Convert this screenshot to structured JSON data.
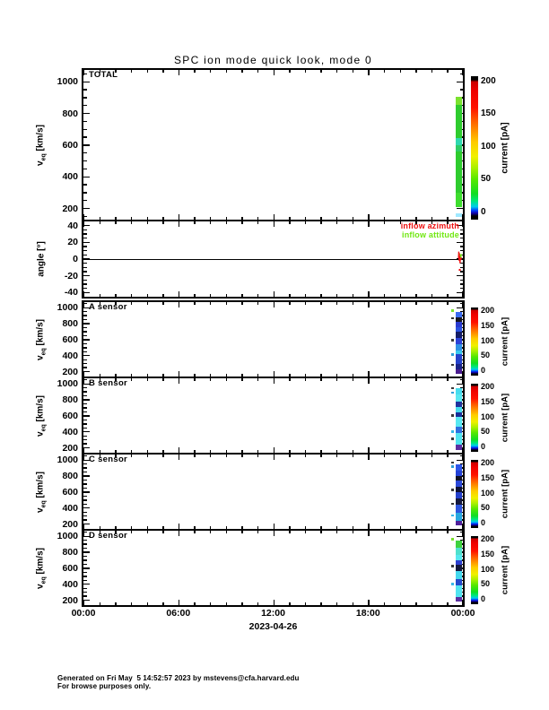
{
  "page": {
    "title": "SPC ion mode quick look, mode 0",
    "footer_line1": "Generated on Fri May  5 14:52:57 2023 by mstevens@cfa.harvard.edu",
    "footer_line2": "For browse purposes only."
  },
  "x_axis": {
    "tick_labels": [
      "00:00",
      "06:00",
      "12:00",
      "18:00",
      "00:00"
    ],
    "date_label": "2023-04-26",
    "major_hours": [
      0,
      6,
      12,
      18,
      24
    ],
    "minor_step_hours": 1,
    "span_hours": 24
  },
  "colorbar": {
    "label": "current [pA]",
    "ticks": [
      0,
      50,
      100,
      150,
      200
    ],
    "gradient_stops": [
      [
        "#000000",
        0
      ],
      [
        "#000000",
        2.5
      ],
      [
        "#1100aa",
        4.5
      ],
      [
        "#0044ff",
        6.5
      ],
      [
        "#00ccee",
        9
      ],
      [
        "#00e87a",
        13
      ],
      [
        "#11dd22",
        18
      ],
      [
        "#55e800",
        28
      ],
      [
        "#a8f000",
        36
      ],
      [
        "#f0f000",
        44
      ],
      [
        "#ffcc00",
        54
      ],
      [
        "#ff9100",
        62
      ],
      [
        "#ff5500",
        70
      ],
      [
        "#ff1100",
        78
      ],
      [
        "#ee0000",
        90
      ],
      [
        "#cc0000",
        96
      ],
      [
        "#000000",
        97.5
      ],
      [
        "#000000",
        100
      ]
    ]
  },
  "colors": {
    "axis": "#000000",
    "background": "#ffffff",
    "inflow_azimuth": "#ee1111",
    "inflow_attitude": "#70e811"
  },
  "chart_data": [
    {
      "key": "total",
      "type": "heatmap",
      "panel_title": "TOTAL",
      "ylabel_main": "v",
      "ylabel_sub": "eq",
      "ylabel_rest": " [km/s]",
      "ylim": [
        130,
        1075
      ],
      "yticks": [
        200,
        400,
        600,
        800,
        1000
      ],
      "y_minor_step": 50,
      "xlim_hours": [
        0,
        24
      ],
      "colorbar": true,
      "strip": {
        "hour_start": 23.55,
        "hour_end": 23.95,
        "segments": [
          {
            "v_top": 905,
            "v_bot": 852,
            "color": "#7ae22e"
          },
          {
            "v_top": 852,
            "v_bot": 646,
            "color": "#2ecc2e"
          },
          {
            "v_top": 646,
            "v_bot": 600,
            "color": "#2ed8b0"
          },
          {
            "v_top": 600,
            "v_bot": 558,
            "color": "#2ecc66"
          },
          {
            "v_top": 558,
            "v_bot": 300,
            "color": "#2ecc2e"
          },
          {
            "v_top": 300,
            "v_bot": 212,
            "color": "#3edd2e"
          },
          {
            "v_top": 168,
            "v_bot": 145,
            "color": "#9fe8ff"
          }
        ]
      },
      "left_dots": []
    },
    {
      "key": "angle",
      "type": "line",
      "panel_title": "",
      "ylabel_main": "angle [°]",
      "ylim": [
        -45,
        45
      ],
      "yticks": [
        -40,
        -20,
        0,
        20,
        40
      ],
      "y_minor_step": 5,
      "xlim_hours": [
        0,
        24
      ],
      "colorbar": false,
      "zero_line": true,
      "legend": [
        {
          "label": "inflow azimuth",
          "color": "#ee1111"
        },
        {
          "label": "inflow attitude",
          "color": "#70e811"
        }
      ],
      "series": [
        {
          "name": "inflow azimuth",
          "color": "#ee1111",
          "points_hour_deg": [
            [
              23.72,
              1
            ],
            [
              23.74,
              9
            ],
            [
              23.76,
              -2
            ],
            [
              23.79,
              7
            ],
            [
              23.82,
              -5
            ],
            [
              23.85,
              4
            ],
            [
              23.88,
              -1
            ],
            [
              23.9,
              2
            ]
          ],
          "extra_dot": [
            23.8,
            -13
          ]
        },
        {
          "name": "inflow attitude",
          "color": "#70e811",
          "points_hour_deg": [
            [
              23.82,
              6
            ],
            [
              23.87,
              3
            ],
            [
              23.92,
              6
            ]
          ]
        }
      ]
    },
    {
      "key": "sensor_a",
      "type": "heatmap",
      "panel_title": "A sensor",
      "ylabel_main": "v",
      "ylabel_sub": "eq",
      "ylabel_rest": " [km/s]",
      "ylim": [
        140,
        1070
      ],
      "yticks": [
        200,
        400,
        600,
        800,
        1000
      ],
      "y_minor_step": 50,
      "xlim_hours": [
        0,
        24
      ],
      "colorbar": true,
      "strip": {
        "hour_start": 23.55,
        "hour_end": 23.95,
        "segments": [
          {
            "v_top": 950,
            "v_bot": 885,
            "color": "#3a6cf0"
          },
          {
            "v_top": 885,
            "v_bot": 822,
            "color": "#15151f"
          },
          {
            "v_top": 822,
            "v_bot": 760,
            "color": "#2a3bd0"
          },
          {
            "v_top": 760,
            "v_bot": 700,
            "color": "#2a52e0"
          },
          {
            "v_top": 700,
            "v_bot": 622,
            "color": "#141c66"
          },
          {
            "v_top": 622,
            "v_bot": 545,
            "color": "#2c42d8"
          },
          {
            "v_top": 545,
            "v_bot": 470,
            "color": "#2f92e6"
          },
          {
            "v_top": 470,
            "v_bot": 415,
            "color": "#38c8ee"
          },
          {
            "v_top": 415,
            "v_bot": 300,
            "color": "#2442cc"
          },
          {
            "v_top": 300,
            "v_bot": 225,
            "color": "#1a2488"
          },
          {
            "v_top": 225,
            "v_bot": 170,
            "color": "#4a1c90"
          }
        ]
      },
      "left_dots": [
        {
          "v": 975,
          "color": "#7ae22e"
        },
        {
          "v": 880,
          "color": "#303030"
        },
        {
          "v": 610,
          "color": "#3a3a3a"
        },
        {
          "v": 430,
          "color": "#2fa0d8"
        },
        {
          "v": 300,
          "color": "#3a3a3a"
        }
      ]
    },
    {
      "key": "sensor_b",
      "type": "heatmap",
      "panel_title": "B sensor",
      "ylabel_main": "v",
      "ylabel_sub": "eq",
      "ylabel_rest": " [km/s]",
      "ylim": [
        140,
        1070
      ],
      "yticks": [
        200,
        400,
        600,
        800,
        1000
      ],
      "y_minor_step": 50,
      "xlim_hours": [
        0,
        24
      ],
      "colorbar": true,
      "strip": {
        "hour_start": 23.55,
        "hour_end": 23.95,
        "segments": [
          {
            "v_top": 950,
            "v_bot": 868,
            "color": "#46dcee"
          },
          {
            "v_top": 868,
            "v_bot": 775,
            "color": "#58e8f2"
          },
          {
            "v_top": 775,
            "v_bot": 712,
            "color": "#20339e"
          },
          {
            "v_top": 712,
            "v_bot": 648,
            "color": "#46dcee"
          },
          {
            "v_top": 648,
            "v_bot": 585,
            "color": "#1a2f99"
          },
          {
            "v_top": 585,
            "v_bot": 462,
            "color": "#58e8f2"
          },
          {
            "v_top": 462,
            "v_bot": 388,
            "color": "#2f6ede"
          },
          {
            "v_top": 388,
            "v_bot": 238,
            "color": "#52e4f0"
          },
          {
            "v_top": 238,
            "v_bot": 178,
            "color": "#5a2ea0"
          }
        ]
      },
      "left_dots": [
        {
          "v": 960,
          "color": "#3a3a3a"
        },
        {
          "v": 905,
          "color": "#2fa0d8"
        },
        {
          "v": 620,
          "color": "#3a3a3a"
        },
        {
          "v": 415,
          "color": "#38b8e8"
        },
        {
          "v": 330,
          "color": "#3a3a3a"
        }
      ]
    },
    {
      "key": "sensor_c",
      "type": "heatmap",
      "panel_title": "C sensor",
      "ylabel_main": "v",
      "ylabel_sub": "eq",
      "ylabel_rest": " [km/s]",
      "ylim": [
        140,
        1070
      ],
      "yticks": [
        200,
        400,
        600,
        800,
        1000
      ],
      "y_minor_step": 50,
      "xlim_hours": [
        0,
        24
      ],
      "colorbar": true,
      "strip": {
        "hour_start": 23.55,
        "hour_end": 23.95,
        "segments": [
          {
            "v_top": 950,
            "v_bot": 872,
            "color": "#2e56e8"
          },
          {
            "v_top": 872,
            "v_bot": 805,
            "color": "#2442d6"
          },
          {
            "v_top": 805,
            "v_bot": 742,
            "color": "#111122"
          },
          {
            "v_top": 742,
            "v_bot": 662,
            "color": "#2b49d9"
          },
          {
            "v_top": 662,
            "v_bot": 598,
            "color": "#0d1133"
          },
          {
            "v_top": 598,
            "v_bot": 522,
            "color": "#2440cc"
          },
          {
            "v_top": 522,
            "v_bot": 442,
            "color": "#14183d"
          },
          {
            "v_top": 442,
            "v_bot": 340,
            "color": "#2d55dd"
          },
          {
            "v_top": 340,
            "v_bot": 242,
            "color": "#28a8e0"
          },
          {
            "v_top": 242,
            "v_bot": 185,
            "color": "#50209a"
          }
        ]
      },
      "left_dots": [
        {
          "v": 985,
          "color": "#3a3a3a"
        },
        {
          "v": 930,
          "color": "#2fa0d8"
        },
        {
          "v": 640,
          "color": "#3a3a3a"
        },
        {
          "v": 470,
          "color": "#3a3a3a"
        },
        {
          "v": 320,
          "color": "#38b8e8"
        }
      ]
    },
    {
      "key": "sensor_d",
      "type": "heatmap",
      "panel_title": "D sensor",
      "ylabel_main": "v",
      "ylabel_sub": "eq",
      "ylabel_rest": " [km/s]",
      "ylim": [
        140,
        1070
      ],
      "yticks": [
        200,
        400,
        600,
        800,
        1000
      ],
      "y_minor_step": 50,
      "xlim_hours": [
        0,
        24
      ],
      "colorbar": true,
      "strip": {
        "hour_start": 23.55,
        "hour_end": 23.95,
        "segments": [
          {
            "v_top": 950,
            "v_bot": 858,
            "color": "#3ed23e"
          },
          {
            "v_top": 858,
            "v_bot": 765,
            "color": "#4fe0cc"
          },
          {
            "v_top": 765,
            "v_bot": 705,
            "color": "#56e8f0"
          },
          {
            "v_top": 705,
            "v_bot": 642,
            "color": "#2b3fd0"
          },
          {
            "v_top": 642,
            "v_bot": 562,
            "color": "#14183d"
          },
          {
            "v_top": 562,
            "v_bot": 465,
            "color": "#44d8ee"
          },
          {
            "v_top": 465,
            "v_bot": 385,
            "color": "#2348cc"
          },
          {
            "v_top": 385,
            "v_bot": 238,
            "color": "#52e4f0"
          },
          {
            "v_top": 238,
            "v_bot": 182,
            "color": "#5a2ea0"
          }
        ]
      },
      "left_dots": [
        {
          "v": 975,
          "color": "#7ae22e"
        },
        {
          "v": 640,
          "color": "#3a3a3a"
        },
        {
          "v": 420,
          "color": "#38b8e8"
        }
      ]
    }
  ]
}
